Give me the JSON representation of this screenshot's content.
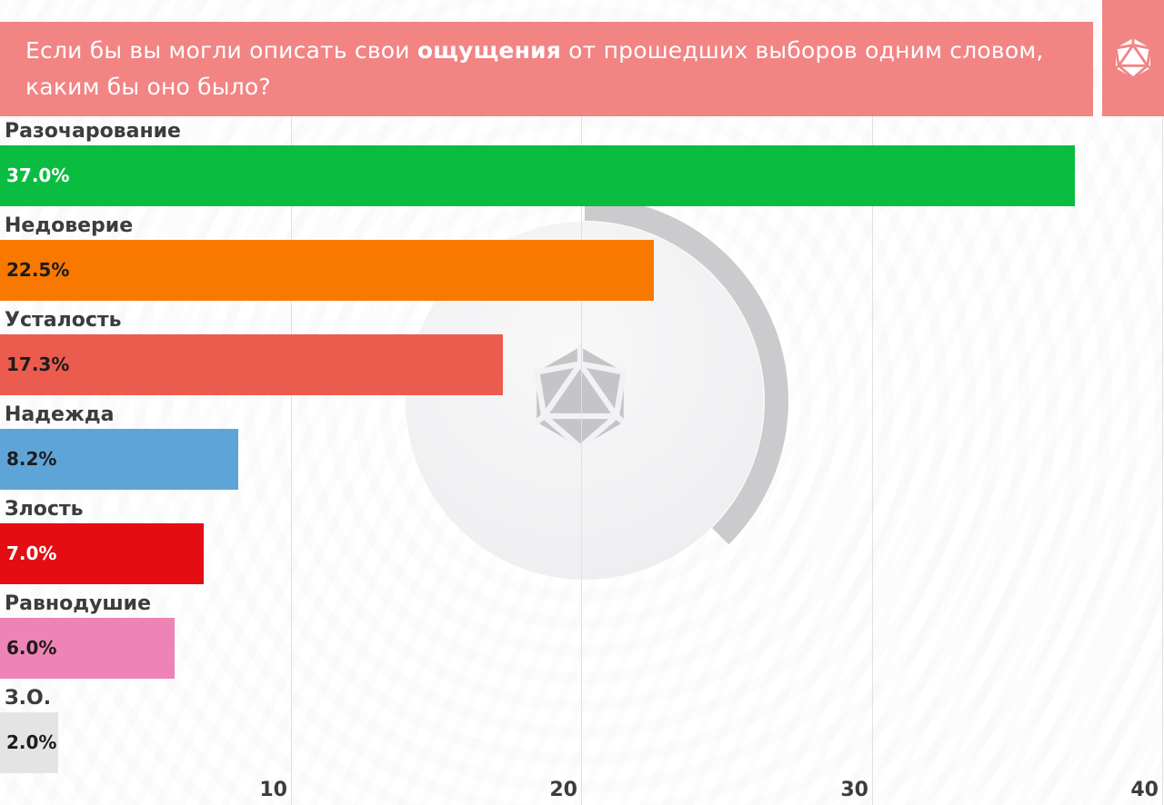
{
  "header": {
    "question_prefix": "Если бы вы могли описать свои ",
    "question_bold": "ощущения",
    "question_suffix": " от прошедших выборов одним словом, каким бы оно было?",
    "background_color": "#f28484",
    "text_color": "#ffffff",
    "logo_icon": "icosahedron-d20-icon"
  },
  "chart_data": {
    "type": "bar",
    "orientation": "horizontal",
    "title": "Если бы вы могли описать свои ощущения от прошедших выборов одним словом, каким бы оно было?",
    "categories": [
      "Разочарование",
      "Недоверие",
      "Усталость",
      "Надежда",
      "Злость",
      "Равнодушие",
      "З.О."
    ],
    "values": [
      37.0,
      22.5,
      17.3,
      8.2,
      7.0,
      6.0,
      2.0
    ],
    "value_labels": [
      "37.0%",
      "22.5%",
      "17.3%",
      "8.2%",
      "7.0%",
      "6.0%",
      "2.0%"
    ],
    "bar_colors": [
      "#0abd41",
      "#f87800",
      "#ec5c4e",
      "#5fa4d7",
      "#e30d13",
      "#ee83b5",
      "#e4e4e4"
    ],
    "value_text_colors": [
      "#ffffff",
      "#1c1c1c",
      "#1c1c1c",
      "#1c1c1c",
      "#ffffff",
      "#1c1c1c",
      "#1c1c1c"
    ],
    "unit": "percent",
    "xlim": [
      0,
      40
    ],
    "x_ticks": [
      10,
      20,
      30,
      40
    ],
    "x_tick_labels": [
      "10",
      "20",
      "30",
      "40"
    ],
    "grid": true,
    "legend": "none",
    "label_color": "#3c3c3c"
  },
  "watermark": {
    "icon": "icosahedron-d20-icon",
    "circle_color": "#f0f0f2",
    "arc_color": "#cbcbce",
    "icon_color": "#c5c5c8"
  }
}
